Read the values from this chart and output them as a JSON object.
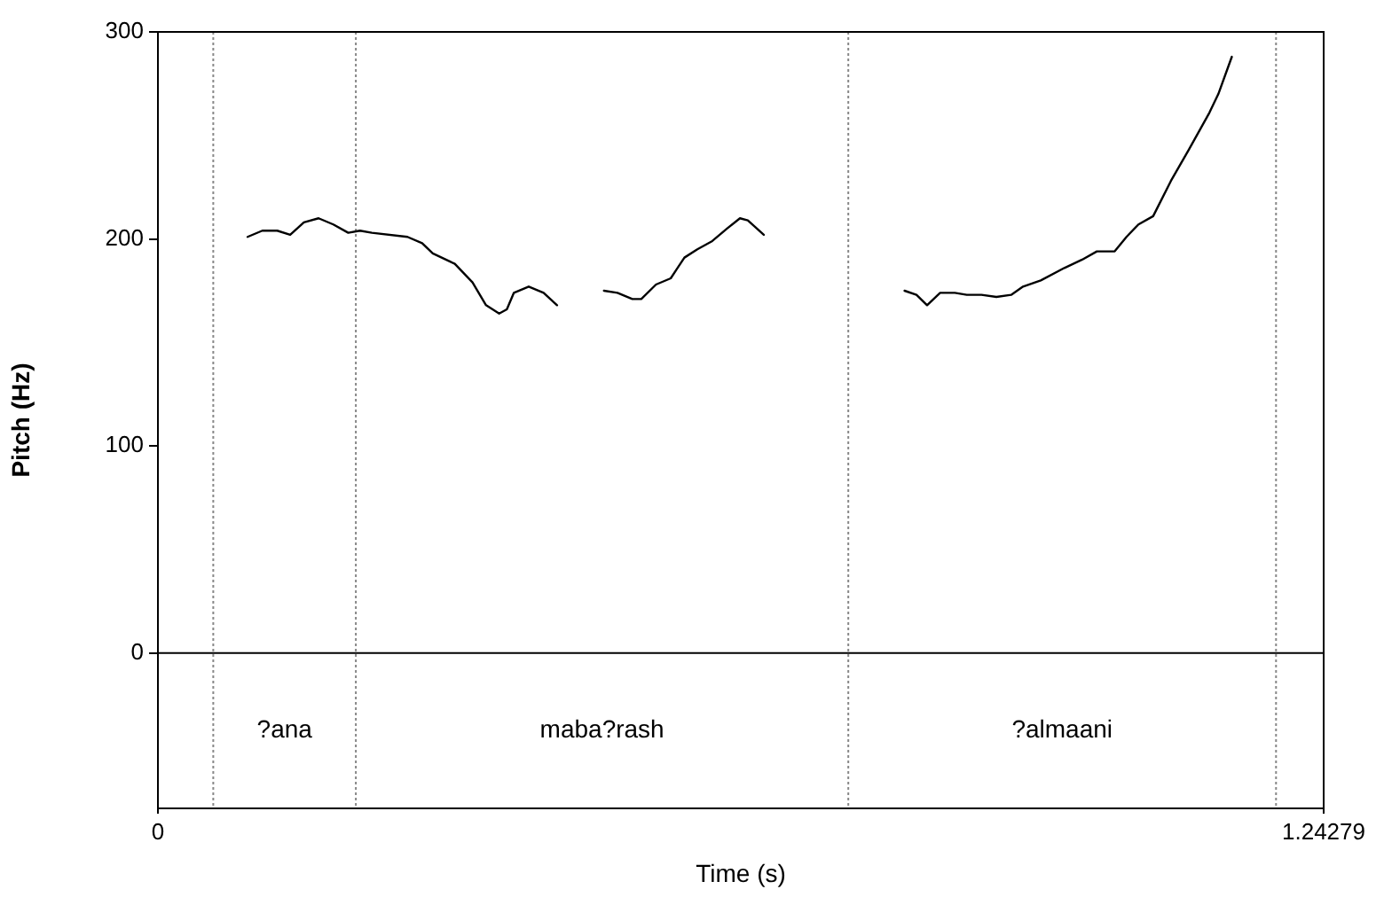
{
  "chart_data": {
    "type": "line",
    "xlabel": "Time (s)",
    "ylabel": "Pitch (Hz)",
    "xlim": [
      0,
      1.24279
    ],
    "xticks": [
      0,
      1.24279
    ],
    "ylim": [
      -75,
      300
    ],
    "yticks": [
      0,
      100,
      200,
      300
    ],
    "grid": false,
    "legend": false,
    "marker": "none",
    "line_style": "solid",
    "series": [
      {
        "color": "#000000",
        "x": [
          0.0956,
          0.1113,
          0.1272,
          0.141,
          0.1556,
          0.1713,
          0.187,
          0.2029,
          0.2154,
          0.2281,
          0.266,
          0.2817,
          0.293,
          0.3165,
          0.3354,
          0.3498,
          0.3638,
          0.372,
          0.3795,
          0.3953,
          0.4112,
          0.4255,
          0.45,
          0.4755,
          0.4899,
          0.5058,
          0.5153,
          0.531,
          0.5467,
          0.5613,
          0.5751,
          0.591,
          0.6067,
          0.6205,
          0.6289,
          0.6459,
          0.72,
          0.796,
          0.8087,
          0.82,
          0.8339,
          0.8496,
          0.8623,
          0.878,
          0.8939,
          0.9096,
          0.9223,
          0.9412,
          0.9664,
          0.9853,
          1.001,
          1.02,
          1.0326,
          1.0453,
          1.061,
          1.0799,
          1.0989,
          1.121,
          1.1305,
          1.1449
        ],
        "values": [
          201,
          204,
          204,
          202,
          208,
          210,
          207,
          203,
          204,
          203,
          201,
          198,
          193,
          188,
          179,
          168,
          164,
          166,
          174,
          177,
          174,
          168,
          null,
          175,
          174,
          171,
          171,
          178,
          181,
          191,
          195,
          199,
          205,
          210,
          209,
          202,
          null,
          175,
          173,
          168,
          174,
          174,
          173,
          173,
          172,
          173,
          177,
          180,
          186,
          190,
          194,
          194,
          201,
          207,
          211,
          228,
          243,
          261,
          270,
          288
        ]
      }
    ],
    "ref_lines": [
      {
        "axis": "y",
        "value": 0,
        "color": "#000000",
        "line_style": "solid"
      },
      {
        "axis": "x",
        "value": 0.059,
        "color": "#888888",
        "line_style": "dotted"
      },
      {
        "axis": "x",
        "value": 0.211,
        "color": "#888888",
        "line_style": "dotted"
      },
      {
        "axis": "x",
        "value": 0.736,
        "color": "#888888",
        "line_style": "dotted"
      },
      {
        "axis": "x",
        "value": 1.192,
        "color": "#888888",
        "line_style": "dotted"
      }
    ],
    "annotations": [
      "?ana",
      "maba?rash",
      "?almaani"
    ]
  }
}
